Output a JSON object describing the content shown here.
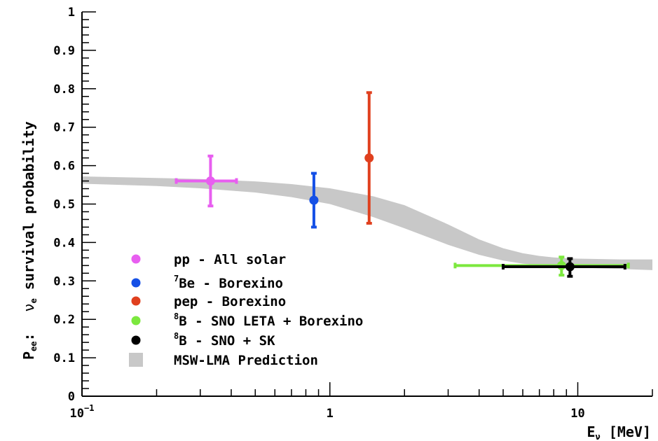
{
  "chart_data": {
    "type": "scatter",
    "x_scale": "log",
    "xlim": [
      0.1,
      20
    ],
    "ylim": [
      0,
      1
    ],
    "xlabel": {
      "main": "E",
      "sub": "ν",
      "unit": "[MeV]"
    },
    "ylabel": {
      "prefix_main": "P",
      "prefix_sub": "ee",
      "prefix_colon": ":",
      "nu": "ν",
      "nu_sub": "e",
      "rest": "survival probability"
    },
    "x_major_ticks": [
      {
        "value": 0.1,
        "base": "10",
        "exp": "−1"
      },
      {
        "value": 1,
        "base": "1",
        "exp": ""
      },
      {
        "value": 10,
        "base": "10",
        "exp": ""
      }
    ],
    "y_major_ticks": [
      {
        "value": 0,
        "label": "0"
      },
      {
        "value": 0.1,
        "label": "0.1"
      },
      {
        "value": 0.2,
        "label": "0.2"
      },
      {
        "value": 0.3,
        "label": "0.3"
      },
      {
        "value": 0.4,
        "label": "0.4"
      },
      {
        "value": 0.5,
        "label": "0.5"
      },
      {
        "value": 0.6,
        "label": "0.6"
      },
      {
        "value": 0.7,
        "label": "0.7"
      },
      {
        "value": 0.8,
        "label": "0.8"
      },
      {
        "value": 0.9,
        "label": "0.9"
      },
      {
        "value": 1,
        "label": "1"
      }
    ],
    "series": [
      {
        "name": "pp - All solar",
        "sup": "",
        "text": "pp - All solar",
        "color": "#e85ef0",
        "x": 0.33,
        "y": 0.56,
        "xerr": [
          0.24,
          0.42
        ],
        "yerr": [
          0.495,
          0.625
        ]
      },
      {
        "name": "7Be - Borexino",
        "sup": "7",
        "text": "Be - Borexino",
        "color": "#1550e6",
        "x": 0.862,
        "y": 0.51,
        "xerr": null,
        "yerr": [
          0.44,
          0.58
        ]
      },
      {
        "name": "pep - Borexino",
        "sup": "",
        "text": "pep - Borexino",
        "color": "#e0401e",
        "x": 1.44,
        "y": 0.62,
        "xerr": null,
        "yerr": [
          0.45,
          0.79
        ]
      },
      {
        "name": "8B - SNO LETA + Borexino",
        "sup": "8",
        "text": "B - SNO LETA + Borexino",
        "color": "#7ce83e",
        "x": 8.6,
        "y": 0.34,
        "xerr": [
          3.2,
          16.0
        ],
        "yerr": [
          0.315,
          0.362
        ]
      },
      {
        "name": "8B - SNO + SK",
        "sup": "8",
        "text": "B - SNO + SK",
        "color": "#000000",
        "x": 9.3,
        "y": 0.337,
        "xerr": [
          5.0,
          15.5
        ],
        "yerr": [
          0.312,
          0.358
        ]
      }
    ],
    "band": {
      "name": "MSW-LMA Prediction",
      "color": "#c8c8c8",
      "x": [
        0.1,
        0.2,
        0.3,
        0.5,
        0.7,
        1.0,
        1.5,
        2.0,
        3.0,
        4.0,
        5.0,
        6.0,
        7.0,
        8.0,
        9.0,
        10.0,
        12.0,
        15.0,
        20.0
      ],
      "upper": [
        0.572,
        0.568,
        0.565,
        0.559,
        0.552,
        0.541,
        0.52,
        0.497,
        0.447,
        0.408,
        0.385,
        0.372,
        0.365,
        0.361,
        0.359,
        0.358,
        0.357,
        0.356,
        0.356
      ],
      "lower": [
        0.553,
        0.547,
        0.541,
        0.53,
        0.518,
        0.5,
        0.466,
        0.437,
        0.394,
        0.368,
        0.353,
        0.345,
        0.341,
        0.338,
        0.336,
        0.335,
        0.333,
        0.331,
        0.328
      ]
    }
  }
}
